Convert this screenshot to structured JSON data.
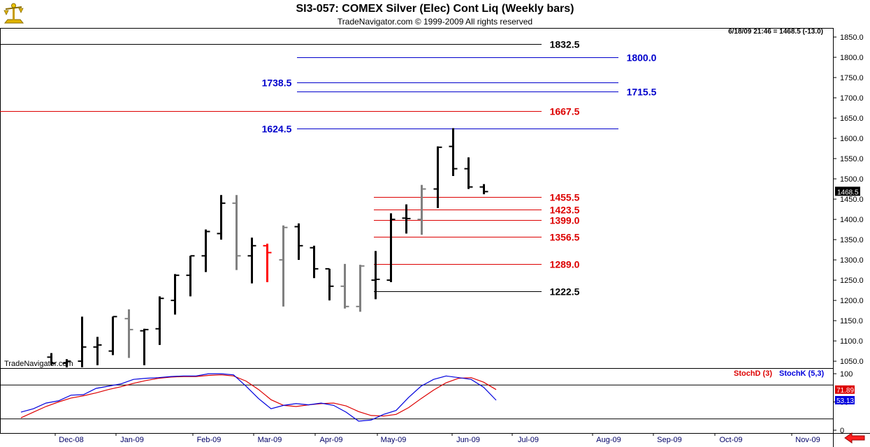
{
  "header": {
    "title": "SI3-057:  COMEX Silver (Elec) Cont Liq  (Weekly bars)",
    "copyright": "TradeNavigator.com © 1999-2009 All rights reserved",
    "status": "6/18/09 21:46 = 1468.5 (-13.0)",
    "watermark": "TradeNavigator.com"
  },
  "chart_data": [
    {
      "type": "ohlc",
      "name": "price",
      "y_ticks": [
        1050,
        1100,
        1150,
        1200,
        1250,
        1300,
        1350,
        1400,
        1450,
        1500,
        1550,
        1600,
        1650,
        1700,
        1750,
        1800,
        1850
      ],
      "ylim": [
        1033,
        1869
      ],
      "x_ticks": [
        "Dec-08",
        "Jan-09",
        "Feb-09",
        "Mar-09",
        "Apr-09",
        "May-09",
        "Jun-09",
        "Jul-09",
        "Aug-09",
        "Sep-09",
        "Oct-09",
        "Nov-09"
      ],
      "last_price_label": "1468.5",
      "bars": [
        {
          "h": 1070,
          "l": 1040,
          "o": 1060,
          "c": 1045,
          "color": "#000000"
        },
        {
          "h": 1055,
          "l": 1030,
          "o": 1045,
          "c": 1050,
          "color": "#000000"
        },
        {
          "h": 1160,
          "l": 1035,
          "o": 1050,
          "c": 1085,
          "color": "#000000"
        },
        {
          "h": 1110,
          "l": 1040,
          "o": 1085,
          "c": 1090,
          "color": "#000000"
        },
        {
          "h": 1160,
          "l": 1065,
          "o": 1075,
          "c": 1160,
          "color": "#000000"
        },
        {
          "h": 1178,
          "l": 1058,
          "o": 1155,
          "c": 1128,
          "color": "#808080"
        },
        {
          "h": 1130,
          "l": 1040,
          "o": 1125,
          "c": 1128,
          "color": "#000000"
        },
        {
          "h": 1210,
          "l": 1090,
          "o": 1130,
          "c": 1205,
          "color": "#000000"
        },
        {
          "h": 1265,
          "l": 1165,
          "o": 1200,
          "c": 1262,
          "color": "#000000"
        },
        {
          "h": 1310,
          "l": 1210,
          "o": 1262,
          "c": 1310,
          "color": "#000000"
        },
        {
          "h": 1375,
          "l": 1270,
          "o": 1310,
          "c": 1370,
          "color": "#000000"
        },
        {
          "h": 1460,
          "l": 1350,
          "o": 1365,
          "c": 1440,
          "color": "#000000"
        },
        {
          "h": 1460,
          "l": 1275,
          "o": 1440,
          "c": 1310,
          "color": "#808080"
        },
        {
          "h": 1355,
          "l": 1242,
          "o": 1310,
          "c": 1335,
          "color": "#000000"
        },
        {
          "h": 1340,
          "l": 1245,
          "o": 1335,
          "c": 1318,
          "color": "#ff0000"
        },
        {
          "h": 1385,
          "l": 1185,
          "o": 1300,
          "c": 1380,
          "color": "#808080"
        },
        {
          "h": 1390,
          "l": 1300,
          "o": 1382,
          "c": 1335,
          "color": "#000000"
        },
        {
          "h": 1335,
          "l": 1255,
          "o": 1330,
          "c": 1278,
          "color": "#000000"
        },
        {
          "h": 1278,
          "l": 1200,
          "o": 1278,
          "c": 1235,
          "color": "#000000"
        },
        {
          "h": 1290,
          "l": 1180,
          "o": 1235,
          "c": 1185,
          "color": "#808080"
        },
        {
          "h": 1288,
          "l": 1172,
          "o": 1185,
          "c": 1285,
          "color": "#808080"
        },
        {
          "h": 1322,
          "l": 1203,
          "o": 1250,
          "c": 1252,
          "color": "#000000"
        },
        {
          "h": 1415,
          "l": 1245,
          "o": 1250,
          "c": 1400,
          "color": "#000000"
        },
        {
          "h": 1437,
          "l": 1365,
          "o": 1403,
          "c": 1402,
          "color": "#000000"
        },
        {
          "h": 1485,
          "l": 1362,
          "o": 1400,
          "c": 1475,
          "color": "#808080"
        },
        {
          "h": 1580,
          "l": 1428,
          "o": 1475,
          "c": 1578,
          "color": "#000000"
        },
        {
          "h": 1625,
          "l": 1507,
          "o": 1580,
          "c": 1525,
          "color": "#000000"
        },
        {
          "h": 1553,
          "l": 1475,
          "o": 1525,
          "c": 1480,
          "color": "#000000"
        },
        {
          "h": 1487,
          "l": 1462,
          "o": 1480,
          "c": 1468.5,
          "color": "#000000"
        }
      ],
      "levels": [
        {
          "label": "1832.5",
          "value": 1832.5,
          "color": "#000000"
        },
        {
          "label": "1800.0",
          "value": 1800.0,
          "color": "#0000cc"
        },
        {
          "label": "1738.5",
          "value": 1738.5,
          "color": "#0000cc"
        },
        {
          "label": "1715.5",
          "value": 1715.5,
          "color": "#0000cc"
        },
        {
          "label": "1667.5",
          "value": 1667.5,
          "color": "#dd0000"
        },
        {
          "label": "1624.5",
          "value": 1624.5,
          "color": "#0000cc"
        },
        {
          "label": "1455.5",
          "value": 1455.5,
          "color": "#dd0000"
        },
        {
          "label": "1423.5",
          "value": 1423.5,
          "color": "#dd0000"
        },
        {
          "label": "1399.0",
          "value": 1399.0,
          "color": "#dd0000"
        },
        {
          "label": "1356.5",
          "value": 1356.5,
          "color": "#dd0000"
        },
        {
          "label": "1289.0",
          "value": 1289.0,
          "color": "#dd0000"
        },
        {
          "label": "1222.5",
          "value": 1222.5,
          "color": "#000000"
        }
      ]
    },
    {
      "type": "line",
      "name": "stochastic",
      "ylim": [
        -5,
        110
      ],
      "y_ticks": [
        0,
        50,
        100
      ],
      "reference_lines": [
        80,
        20
      ],
      "series": [
        {
          "name": "StochD (3)",
          "color": "#dd0000",
          "last_label": "71.89",
          "values": [
            22,
            32,
            42,
            50,
            57,
            61,
            66,
            72,
            77,
            83,
            88,
            92,
            94,
            95,
            95,
            97,
            98,
            96,
            87,
            72,
            54,
            44,
            42,
            45,
            47,
            48,
            43,
            33,
            26,
            25,
            28,
            40,
            56,
            71,
            84,
            92,
            93,
            85,
            71.89
          ]
        },
        {
          "name": "StochK (5,3)",
          "color": "#0000dd",
          "last_label": "53.13",
          "values": [
            32,
            38,
            48,
            52,
            62,
            63,
            74,
            78,
            82,
            90,
            92,
            93,
            95,
            96,
            96,
            100,
            100,
            98,
            78,
            56,
            38,
            44,
            47,
            45,
            48,
            44,
            32,
            16,
            18,
            28,
            35,
            58,
            78,
            90,
            96,
            93,
            90,
            76,
            53.13
          ]
        }
      ]
    }
  ]
}
